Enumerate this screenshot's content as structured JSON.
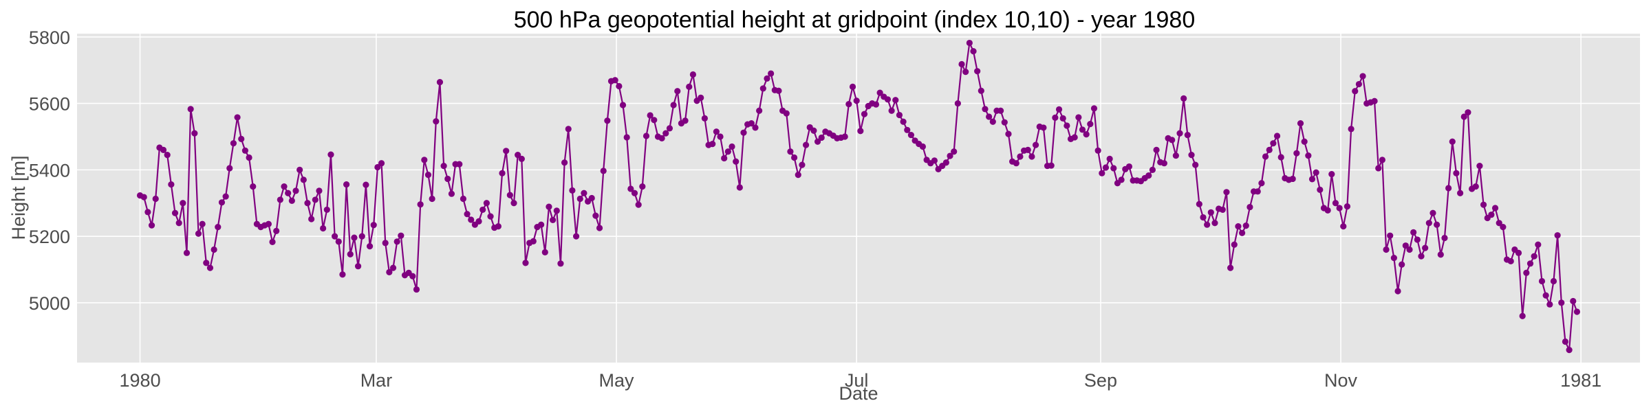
{
  "chart_data": {
    "type": "line",
    "title": "500 hPa geopotential height at gridpoint (index 10,10) - year 1980",
    "xlabel": "Date",
    "ylabel": "Height [m]",
    "x_start": "1980-01-01",
    "x_end": "1980-12-31",
    "xlim": [
      "1979-12-16",
      "1981-01-16"
    ],
    "ylim": [
      4820,
      5810
    ],
    "grid": true,
    "color": "#800080",
    "marker": "circle",
    "x_ticks": [
      {
        "date": "1980-01-01",
        "label": "1980"
      },
      {
        "date": "1980-03-01",
        "label": "Mar"
      },
      {
        "date": "1980-05-01",
        "label": "May"
      },
      {
        "date": "1980-07-01",
        "label": "Jul"
      },
      {
        "date": "1980-09-01",
        "label": "Sep"
      },
      {
        "date": "1980-11-01",
        "label": "Nov"
      },
      {
        "date": "1981-01-01",
        "label": "1981"
      }
    ],
    "y_ticks": [
      5000,
      5200,
      5400,
      5600,
      5800
    ],
    "values": [
      5323,
      5318,
      5273,
      5233,
      5313,
      5467,
      5460,
      5445,
      5356,
      5270,
      5240,
      5300,
      5150,
      5583,
      5510,
      5208,
      5237,
      5120,
      5105,
      5160,
      5228,
      5302,
      5320,
      5405,
      5480,
      5558,
      5493,
      5458,
      5437,
      5350,
      5237,
      5228,
      5233,
      5237,
      5183,
      5216,
      5310,
      5350,
      5330,
      5307,
      5337,
      5400,
      5370,
      5300,
      5252,
      5310,
      5337,
      5224,
      5280,
      5446,
      5200,
      5184,
      5085,
      5356,
      5146,
      5196,
      5110,
      5200,
      5355,
      5170,
      5234,
      5408,
      5420,
      5180,
      5092,
      5105,
      5184,
      5202,
      5083,
      5090,
      5080,
      5040,
      5296,
      5430,
      5385,
      5313,
      5546,
      5664,
      5412,
      5373,
      5328,
      5417,
      5417,
      5313,
      5267,
      5250,
      5235,
      5245,
      5280,
      5300,
      5260,
      5226,
      5230,
      5390,
      5457,
      5324,
      5300,
      5445,
      5433,
      5120,
      5180,
      5185,
      5228,
      5235,
      5152,
      5289,
      5249,
      5277,
      5118,
      5422,
      5523,
      5338,
      5200,
      5313,
      5330,
      5305,
      5315,
      5262,
      5225,
      5397,
      5548,
      5667,
      5670,
      5652,
      5595,
      5498,
      5343,
      5330,
      5295,
      5350,
      5502,
      5564,
      5550,
      5500,
      5495,
      5510,
      5525,
      5595,
      5637,
      5540,
      5548,
      5650,
      5687,
      5608,
      5617,
      5555,
      5475,
      5478,
      5515,
      5500,
      5435,
      5455,
      5470,
      5425,
      5347,
      5512,
      5537,
      5540,
      5527,
      5578,
      5645,
      5675,
      5690,
      5640,
      5638,
      5578,
      5570,
      5455,
      5437,
      5385,
      5415,
      5475,
      5528,
      5518,
      5485,
      5497,
      5515,
      5510,
      5503,
      5495,
      5497,
      5500,
      5598,
      5650,
      5608,
      5517,
      5568,
      5592,
      5600,
      5597,
      5632,
      5620,
      5612,
      5578,
      5610,
      5565,
      5545,
      5520,
      5505,
      5488,
      5478,
      5470,
      5430,
      5420,
      5428,
      5402,
      5412,
      5422,
      5442,
      5455,
      5600,
      5718,
      5695,
      5782,
      5757,
      5697,
      5638,
      5583,
      5560,
      5545,
      5578,
      5578,
      5543,
      5508,
      5425,
      5420,
      5440,
      5458,
      5460,
      5440,
      5475,
      5530,
      5527,
      5412,
      5413,
      5557,
      5582,
      5555,
      5533,
      5493,
      5498,
      5558,
      5521,
      5507,
      5538,
      5585,
      5458,
      5390,
      5407,
      5433,
      5405,
      5360,
      5370,
      5402,
      5410,
      5368,
      5368,
      5366,
      5375,
      5383,
      5400,
      5460,
      5423,
      5420,
      5495,
      5490,
      5443,
      5510,
      5615,
      5505,
      5445,
      5415,
      5297,
      5257,
      5235,
      5272,
      5240,
      5283,
      5280,
      5333,
      5105,
      5175,
      5230,
      5210,
      5232,
      5288,
      5335,
      5335,
      5360,
      5440,
      5460,
      5480,
      5502,
      5438,
      5375,
      5370,
      5373,
      5450,
      5540,
      5485,
      5443,
      5372,
      5392,
      5340,
      5285,
      5278,
      5387,
      5300,
      5285,
      5230,
      5290,
      5523,
      5637,
      5658,
      5682,
      5600,
      5603,
      5607,
      5405,
      5430,
      5160,
      5202,
      5135,
      5035,
      5115,
      5172,
      5160,
      5212,
      5190,
      5140,
      5165,
      5240,
      5270,
      5235,
      5145,
      5195,
      5345,
      5485,
      5390,
      5330,
      5560,
      5573,
      5343,
      5350,
      5412,
      5295,
      5255,
      5265,
      5285,
      5240,
      5228,
      5130,
      5125,
      5160,
      5150,
      4960,
      5090,
      5118,
      5140,
      5175,
      5065,
      5022,
      4995,
      5065,
      5203,
      5000,
      4883,
      4858,
      5005,
      4973
    ]
  }
}
